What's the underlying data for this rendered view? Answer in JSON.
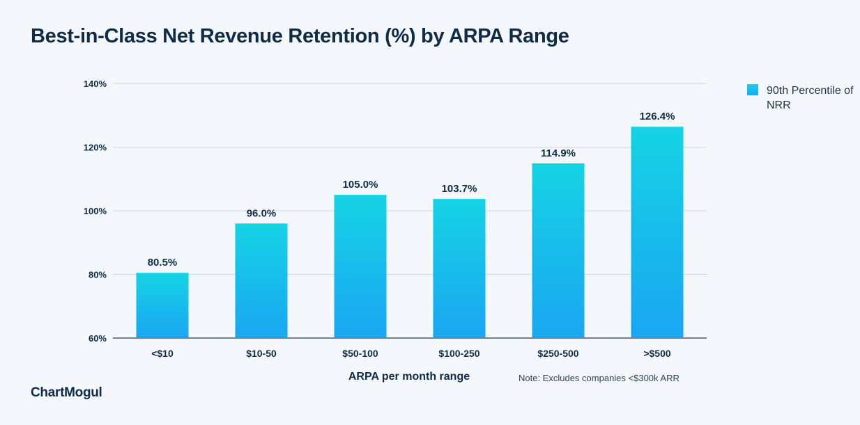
{
  "colors": {
    "bar_top": "#16d3e4",
    "bar_bottom": "#1aa6f3",
    "text_dark": "#0f2b45",
    "grid": "#cdd5df",
    "axis": "#4a5866"
  },
  "brand": "ChartMogul",
  "note": "Note: Excludes companies <$300k ARR",
  "chart_data": {
    "type": "bar",
    "title": "Best-in-Class Net Revenue Retention (%) by ARPA Range",
    "xlabel": "ARPA per month range",
    "ylabel": "",
    "categories": [
      "<$10",
      "$10-50",
      "$50-100",
      "$100-250",
      "$250-500",
      ">$500"
    ],
    "series": [
      {
        "name": "90th Percentile of NRR",
        "values": [
          80.5,
          96.0,
          105.0,
          103.7,
          114.9,
          126.4
        ],
        "labels": [
          "80.5%",
          "96.0%",
          "105.0%",
          "103.7%",
          "114.9%",
          "126.4%"
        ]
      }
    ],
    "ylim": [
      60,
      140
    ],
    "yticks": [
      60,
      80,
      100,
      120,
      140
    ],
    "ytick_labels": [
      "60%",
      "80%",
      "100%",
      "120%",
      "140%"
    ],
    "grid": true,
    "legend_position": "top-right"
  }
}
